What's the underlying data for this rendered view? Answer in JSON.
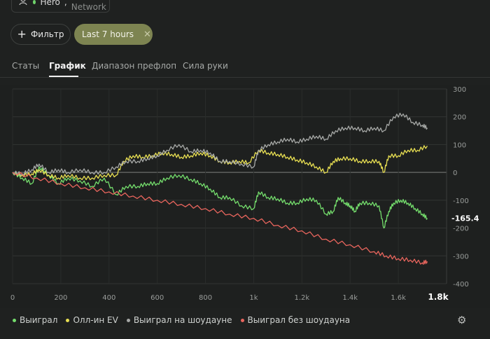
{
  "hero": {
    "name": "Hero",
    "network": "GG Network"
  },
  "toolbar": {
    "filter_label": "Фильтр",
    "time_filter": "Last 7 hours"
  },
  "tabs": [
    {
      "label": "Статы",
      "active": false
    },
    {
      "label": "График",
      "active": true
    },
    {
      "label": "Диапазон префлоп",
      "active": false
    },
    {
      "label": "Сила руки",
      "active": false
    }
  ],
  "chart_data": {
    "type": "line",
    "xlabel": "",
    "ylabel": "",
    "xlim": [
      0,
      1800
    ],
    "ylim": [
      -400,
      300
    ],
    "x_ticks": [
      "0",
      "200",
      "400",
      "600",
      "800",
      "1k",
      "1.2k",
      "1.4k",
      "1.6k",
      "1.8k"
    ],
    "y_ticks": [
      "300",
      "200",
      "100",
      "0",
      "-100",
      "-200",
      "-300",
      "-400"
    ],
    "current_value_label": "-165.4",
    "grid": true,
    "legend_position": "bottom-left",
    "series": [
      {
        "name": "Выиграл",
        "color": "#74dd6c",
        "points": [
          [
            0,
            0
          ],
          [
            40,
            -20
          ],
          [
            80,
            -40
          ],
          [
            110,
            20
          ],
          [
            150,
            -10
          ],
          [
            190,
            -40
          ],
          [
            230,
            -20
          ],
          [
            280,
            -30
          ],
          [
            330,
            -50
          ],
          [
            380,
            -20
          ],
          [
            430,
            -80
          ],
          [
            470,
            -50
          ],
          [
            520,
            -50
          ],
          [
            560,
            -40
          ],
          [
            600,
            -40
          ],
          [
            640,
            -20
          ],
          [
            690,
            -10
          ],
          [
            740,
            -25
          ],
          [
            780,
            -40
          ],
          [
            820,
            -60
          ],
          [
            860,
            -90
          ],
          [
            900,
            -90
          ],
          [
            950,
            -120
          ],
          [
            1000,
            -130
          ],
          [
            1020,
            -70
          ],
          [
            1060,
            -90
          ],
          [
            1100,
            -95
          ],
          [
            1140,
            -110
          ],
          [
            1180,
            -110
          ],
          [
            1220,
            -95
          ],
          [
            1260,
            -100
          ],
          [
            1300,
            -150
          ],
          [
            1330,
            -140
          ],
          [
            1350,
            -90
          ],
          [
            1380,
            -110
          ],
          [
            1400,
            -120
          ],
          [
            1420,
            -140
          ],
          [
            1440,
            -110
          ],
          [
            1480,
            -110
          ],
          [
            1520,
            -120
          ],
          [
            1540,
            -200
          ],
          [
            1560,
            -140
          ],
          [
            1580,
            -110
          ],
          [
            1610,
            -100
          ],
          [
            1640,
            -110
          ],
          [
            1670,
            -130
          ],
          [
            1700,
            -150
          ],
          [
            1720,
            -165
          ]
        ]
      },
      {
        "name": "Олл-ин EV",
        "color": "#e8df52",
        "points": [
          [
            0,
            0
          ],
          [
            40,
            -10
          ],
          [
            80,
            -5
          ],
          [
            110,
            10
          ],
          [
            150,
            -10
          ],
          [
            190,
            -20
          ],
          [
            230,
            -10
          ],
          [
            280,
            -20
          ],
          [
            330,
            -20
          ],
          [
            380,
            -10
          ],
          [
            430,
            -10
          ],
          [
            460,
            40
          ],
          [
            500,
            60
          ],
          [
            540,
            55
          ],
          [
            580,
            60
          ],
          [
            620,
            70
          ],
          [
            660,
            65
          ],
          [
            700,
            55
          ],
          [
            740,
            60
          ],
          [
            780,
            70
          ],
          [
            820,
            60
          ],
          [
            860,
            40
          ],
          [
            900,
            35
          ],
          [
            940,
            40
          ],
          [
            980,
            35
          ],
          [
            1020,
            80
          ],
          [
            1060,
            70
          ],
          [
            1100,
            65
          ],
          [
            1140,
            55
          ],
          [
            1180,
            45
          ],
          [
            1220,
            35
          ],
          [
            1260,
            20
          ],
          [
            1300,
            0
          ],
          [
            1330,
            40
          ],
          [
            1360,
            50
          ],
          [
            1400,
            50
          ],
          [
            1440,
            40
          ],
          [
            1480,
            40
          ],
          [
            1520,
            40
          ],
          [
            1540,
            0
          ],
          [
            1560,
            60
          ],
          [
            1600,
            60
          ],
          [
            1640,
            80
          ],
          [
            1680,
            80
          ],
          [
            1720,
            95
          ]
        ]
      },
      {
        "name": "Выиграл на шоудауне",
        "color": "#a6a8a6",
        "points": [
          [
            0,
            0
          ],
          [
            40,
            -5
          ],
          [
            80,
            10
          ],
          [
            110,
            30
          ],
          [
            150,
            0
          ],
          [
            190,
            10
          ],
          [
            230,
            0
          ],
          [
            280,
            10
          ],
          [
            330,
            0
          ],
          [
            380,
            0
          ],
          [
            430,
            20
          ],
          [
            470,
            40
          ],
          [
            520,
            40
          ],
          [
            560,
            50
          ],
          [
            600,
            60
          ],
          [
            640,
            80
          ],
          [
            690,
            100
          ],
          [
            740,
            75
          ],
          [
            780,
            80
          ],
          [
            820,
            70
          ],
          [
            860,
            40
          ],
          [
            900,
            40
          ],
          [
            950,
            30
          ],
          [
            1000,
            20
          ],
          [
            1020,
            80
          ],
          [
            1060,
            100
          ],
          [
            1100,
            110
          ],
          [
            1140,
            120
          ],
          [
            1180,
            110
          ],
          [
            1220,
            120
          ],
          [
            1260,
            130
          ],
          [
            1300,
            120
          ],
          [
            1340,
            150
          ],
          [
            1380,
            160
          ],
          [
            1420,
            160
          ],
          [
            1460,
            150
          ],
          [
            1500,
            160
          ],
          [
            1540,
            150
          ],
          [
            1580,
            200
          ],
          [
            1620,
            210
          ],
          [
            1660,
            180
          ],
          [
            1700,
            170
          ],
          [
            1720,
            160
          ]
        ]
      },
      {
        "name": "Выиграл без шоудауна",
        "color": "#e8655d",
        "points": [
          [
            0,
            0
          ],
          [
            100,
            -20
          ],
          [
            200,
            -40
          ],
          [
            300,
            -55
          ],
          [
            400,
            -70
          ],
          [
            500,
            -85
          ],
          [
            600,
            -100
          ],
          [
            700,
            -115
          ],
          [
            800,
            -130
          ],
          [
            900,
            -150
          ],
          [
            1000,
            -165
          ],
          [
            1100,
            -190
          ],
          [
            1200,
            -210
          ],
          [
            1300,
            -240
          ],
          [
            1400,
            -260
          ],
          [
            1500,
            -285
          ],
          [
            1550,
            -300
          ],
          [
            1600,
            -310
          ],
          [
            1650,
            -315
          ],
          [
            1700,
            -325
          ],
          [
            1720,
            -320
          ]
        ]
      }
    ]
  }
}
